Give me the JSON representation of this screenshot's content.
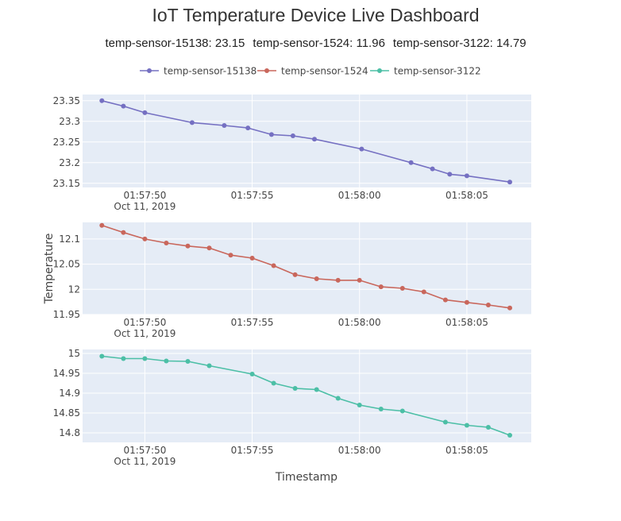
{
  "header": {
    "title": "IoT Temperature Device Live Dashboard",
    "readings": [
      {
        "sensor": "temp-sensor-15138",
        "value": "23.15"
      },
      {
        "sensor": "temp-sensor-1524",
        "value": "11.96"
      },
      {
        "sensor": "temp-sensor-3122",
        "value": "14.79"
      }
    ]
  },
  "chart_data": {
    "type": "line",
    "layout": "3 vertically stacked subplots with shared time axis",
    "xlabel": "Timestamp",
    "ylabel": "Temperature",
    "date_label": "Oct 11, 2019",
    "x_tick_labels": [
      "01:57:50",
      "01:57:55",
      "01:58:00",
      "01:58:05"
    ],
    "x_range": [
      "2019-10-11 01:57:47.1",
      "2019-10-11 01:58:08.0"
    ],
    "grid": true,
    "legend": {
      "placement": "top-center",
      "orientation": "horizontal"
    },
    "plot_background": "#e5ecf6",
    "series": [
      {
        "name": "temp-sensor-15138",
        "color": "#7570c2",
        "ylim": [
          23.14,
          23.365
        ],
        "y_ticks": [
          23.15,
          23.2,
          23.25,
          23.3,
          23.35
        ],
        "y_tick_labels": [
          "23.15",
          "23.2",
          "23.25",
          "23.3",
          "23.35"
        ],
        "points": [
          {
            "x": "2019-10-11 01:57:48.0",
            "y": 23.35
          },
          {
            "x": "2019-10-11 01:57:49.0",
            "y": 23.337
          },
          {
            "x": "2019-10-11 01:57:50.0",
            "y": 23.321
          },
          {
            "x": "2019-10-11 01:57:52.2",
            "y": 23.297
          },
          {
            "x": "2019-10-11 01:57:53.7",
            "y": 23.29
          },
          {
            "x": "2019-10-11 01:57:54.8",
            "y": 23.284
          },
          {
            "x": "2019-10-11 01:57:55.9",
            "y": 23.268
          },
          {
            "x": "2019-10-11 01:57:56.9",
            "y": 23.265
          },
          {
            "x": "2019-10-11 01:57:57.9",
            "y": 23.257
          },
          {
            "x": "2019-10-11 01:58:00.1",
            "y": 23.233
          },
          {
            "x": "2019-10-11 01:58:02.4",
            "y": 23.2
          },
          {
            "x": "2019-10-11 01:58:03.4",
            "y": 23.185
          },
          {
            "x": "2019-10-11 01:58:04.2",
            "y": 23.172
          },
          {
            "x": "2019-10-11 01:58:05.0",
            "y": 23.168
          },
          {
            "x": "2019-10-11 01:58:07.0",
            "y": 23.153
          }
        ]
      },
      {
        "name": "temp-sensor-1524",
        "color": "#c9675c",
        "ylim": [
          11.95,
          12.133
        ],
        "y_ticks": [
          11.95,
          12.0,
          12.05,
          12.1
        ],
        "y_tick_labels": [
          "11.95",
          "12",
          "12.05",
          "12.1"
        ],
        "points": [
          {
            "x": "2019-10-11 01:57:48.0",
            "y": 12.127
          },
          {
            "x": "2019-10-11 01:57:49.0",
            "y": 12.113
          },
          {
            "x": "2019-10-11 01:57:50.0",
            "y": 12.1
          },
          {
            "x": "2019-10-11 01:57:51.0",
            "y": 12.092
          },
          {
            "x": "2019-10-11 01:57:52.0",
            "y": 12.086
          },
          {
            "x": "2019-10-11 01:57:53.0",
            "y": 12.082
          },
          {
            "x": "2019-10-11 01:57:54.0",
            "y": 12.068
          },
          {
            "x": "2019-10-11 01:57:55.0",
            "y": 12.062
          },
          {
            "x": "2019-10-11 01:57:56.0",
            "y": 12.047
          },
          {
            "x": "2019-10-11 01:57:57.0",
            "y": 12.029
          },
          {
            "x": "2019-10-11 01:57:58.0",
            "y": 12.021
          },
          {
            "x": "2019-10-11 01:57:59.0",
            "y": 12.018
          },
          {
            "x": "2019-10-11 01:58:00.0",
            "y": 12.018
          },
          {
            "x": "2019-10-11 01:58:01.0",
            "y": 12.005
          },
          {
            "x": "2019-10-11 01:58:02.0",
            "y": 12.002
          },
          {
            "x": "2019-10-11 01:58:03.0",
            "y": 11.995
          },
          {
            "x": "2019-10-11 01:58:04.0",
            "y": 11.979
          },
          {
            "x": "2019-10-11 01:58:05.0",
            "y": 11.974
          },
          {
            "x": "2019-10-11 01:58:06.0",
            "y": 11.969
          },
          {
            "x": "2019-10-11 01:58:07.0",
            "y": 11.963
          }
        ]
      },
      {
        "name": "temp-sensor-3122",
        "color": "#4cbfa6",
        "ylim": [
          14.776,
          15.01
        ],
        "y_ticks": [
          14.8,
          14.85,
          14.9,
          14.95,
          15.0
        ],
        "y_tick_labels": [
          "14.8",
          "14.85",
          "14.9",
          "14.95",
          "15"
        ],
        "points": [
          {
            "x": "2019-10-11 01:57:48.0",
            "y": 14.993
          },
          {
            "x": "2019-10-11 01:57:49.0",
            "y": 14.987
          },
          {
            "x": "2019-10-11 01:57:50.0",
            "y": 14.987
          },
          {
            "x": "2019-10-11 01:57:51.0",
            "y": 14.981
          },
          {
            "x": "2019-10-11 01:57:52.0",
            "y": 14.98
          },
          {
            "x": "2019-10-11 01:57:53.0",
            "y": 14.969
          },
          {
            "x": "2019-10-11 01:57:55.0",
            "y": 14.948
          },
          {
            "x": "2019-10-11 01:57:56.0",
            "y": 14.925
          },
          {
            "x": "2019-10-11 01:57:57.0",
            "y": 14.912
          },
          {
            "x": "2019-10-11 01:57:58.0",
            "y": 14.909
          },
          {
            "x": "2019-10-11 01:57:59.0",
            "y": 14.887
          },
          {
            "x": "2019-10-11 01:58:00.0",
            "y": 14.87
          },
          {
            "x": "2019-10-11 01:58:01.0",
            "y": 14.86
          },
          {
            "x": "2019-10-11 01:58:02.0",
            "y": 14.855
          },
          {
            "x": "2019-10-11 01:58:04.0",
            "y": 14.827
          },
          {
            "x": "2019-10-11 01:58:05.0",
            "y": 14.819
          },
          {
            "x": "2019-10-11 01:58:06.0",
            "y": 14.814
          },
          {
            "x": "2019-10-11 01:58:07.0",
            "y": 14.794
          }
        ]
      }
    ]
  }
}
